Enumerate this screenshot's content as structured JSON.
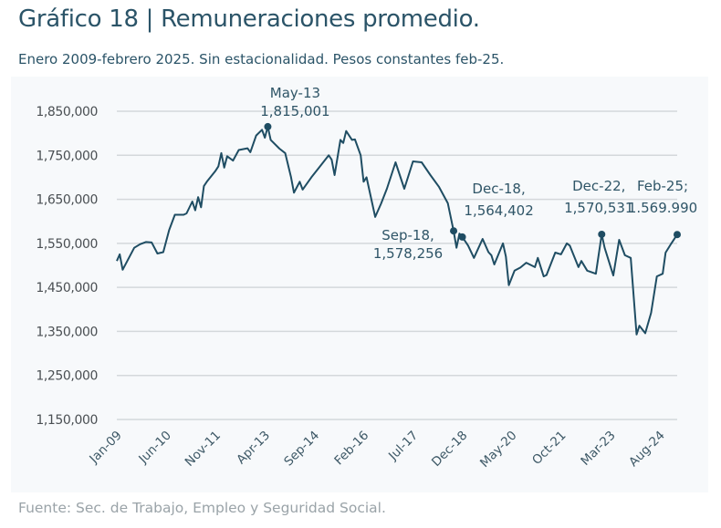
{
  "title": "Gráfico 18 | Remuneraciones promedio.",
  "subtitle": "Enero 2009-febrero 2025. Sin estacionalidad. Pesos constantes feb-25.",
  "source": "Fuente: Sec. de Trabajo, Empleo y Seguridad Social.",
  "chart_data": {
    "type": "line",
    "title": "",
    "xlabel": "",
    "ylabel": "",
    "ylim": [
      1150000,
      1850000
    ],
    "yticks": [
      1150000,
      1250000,
      1350000,
      1450000,
      1550000,
      1650000,
      1750000,
      1850000
    ],
    "ytick_labels": [
      "1,150,000",
      "1,250,000",
      "1,350,000",
      "1,450,000",
      "1,550,000",
      "1,650,000",
      "1,750,000",
      "1,850,000"
    ],
    "xlim": [
      "2009-01",
      "2025-02"
    ],
    "xticks": [
      "2009-01",
      "2010-06",
      "2011-11",
      "2013-04",
      "2014-09",
      "2016-02",
      "2017-07",
      "2018-12",
      "2020-05",
      "2021-10",
      "2023-03",
      "2024-08"
    ],
    "xtick_labels": [
      "Jan-09",
      "Jun-10",
      "Nov-11",
      "Apr-13",
      "Sep-14",
      "Feb-16",
      "Jul-17",
      "Dec-18",
      "May-20",
      "Oct-21",
      "Mar-23",
      "Aug-24"
    ],
    "grid": "horizontal",
    "line_color": "#1f4d63",
    "series": [
      {
        "x": [
          "2009-01",
          "2009-02",
          "2009-03",
          "2009-05",
          "2009-07",
          "2009-09",
          "2009-11",
          "2010-01",
          "2010-03",
          "2010-05",
          "2010-07",
          "2010-09",
          "2010-12",
          "2011-01",
          "2011-03",
          "2011-04",
          "2011-05",
          "2011-06",
          "2011-07",
          "2011-08",
          "2011-11",
          "2011-12",
          "2012-01",
          "2012-02",
          "2012-03",
          "2012-05",
          "2012-07",
          "2012-10",
          "2012-11",
          "2013-01",
          "2013-03",
          "2013-04",
          "2013-05",
          "2013-06",
          "2013-09",
          "2013-11",
          "2014-01",
          "2014-02",
          "2014-04",
          "2014-05",
          "2014-08",
          "2014-11",
          "2015-02",
          "2015-03",
          "2015-04",
          "2015-06",
          "2015-07",
          "2015-08",
          "2015-10",
          "2015-11",
          "2016-01",
          "2016-02",
          "2016-03",
          "2016-06",
          "2016-08",
          "2016-10",
          "2017-01",
          "2017-04",
          "2017-07",
          "2017-10",
          "2018-01",
          "2018-04",
          "2018-07",
          "2018-09",
          "2018-10",
          "2018-11",
          "2018-12",
          "2019-02",
          "2019-04",
          "2019-07",
          "2019-09",
          "2019-10",
          "2019-11",
          "2020-02",
          "2020-03",
          "2020-04",
          "2020-06",
          "2020-08",
          "2020-10",
          "2021-01",
          "2021-02",
          "2021-04",
          "2021-05",
          "2021-08",
          "2021-10",
          "2021-12",
          "2022-01",
          "2022-04",
          "2022-05",
          "2022-07",
          "2022-10",
          "2022-12",
          "2023-01",
          "2023-04",
          "2023-06",
          "2023-08",
          "2023-10",
          "2023-12",
          "2024-01",
          "2024-03",
          "2024-05",
          "2024-07",
          "2024-09",
          "2024-10",
          "2024-12",
          "2025-02"
        ],
        "y": [
          1510000,
          1525000,
          1490000,
          1515000,
          1540000,
          1548000,
          1553000,
          1552000,
          1527000,
          1530000,
          1580000,
          1615000,
          1615000,
          1618000,
          1645000,
          1625000,
          1655000,
          1632000,
          1680000,
          1690000,
          1715000,
          1725000,
          1755000,
          1722000,
          1748000,
          1738000,
          1762000,
          1766000,
          1757000,
          1795000,
          1808000,
          1790000,
          1815001,
          1785000,
          1765000,
          1755000,
          1700000,
          1665000,
          1690000,
          1672000,
          1700000,
          1725000,
          1750000,
          1740000,
          1705000,
          1785000,
          1778000,
          1805000,
          1785000,
          1786000,
          1750000,
          1690000,
          1700000,
          1610000,
          1640000,
          1674000,
          1734000,
          1674000,
          1736000,
          1734000,
          1705000,
          1678000,
          1641000,
          1578256,
          1540000,
          1572000,
          1564402,
          1545000,
          1517000,
          1560000,
          1530000,
          1523000,
          1502000,
          1550000,
          1520000,
          1455000,
          1488000,
          1495000,
          1506000,
          1496000,
          1517000,
          1475000,
          1478000,
          1529000,
          1525000,
          1550000,
          1545000,
          1496000,
          1510000,
          1488000,
          1481000,
          1570531,
          1540000,
          1477000,
          1558000,
          1523000,
          1517000,
          1343000,
          1363000,
          1346000,
          1392000,
          1475000,
          1481000,
          1529000,
          1550000,
          1569990
        ]
      }
    ],
    "annotations": [
      {
        "x": "2013-05",
        "y": 1815001,
        "line1": "May-13",
        "line2": "1,815,001"
      },
      {
        "x": "2018-09",
        "y": 1578256,
        "line1": "Sep-18,",
        "line2": "1,578,256"
      },
      {
        "x": "2018-12",
        "y": 1564402,
        "line1": "Dec-18,",
        "line2": "1,564,402"
      },
      {
        "x": "2022-12",
        "y": 1570531,
        "line1": "Dec-22,",
        "line2": "1,570,531"
      },
      {
        "x": "2025-02",
        "y": 1569990,
        "line1": "Feb-25;",
        "line2": "1.569.990"
      }
    ]
  }
}
